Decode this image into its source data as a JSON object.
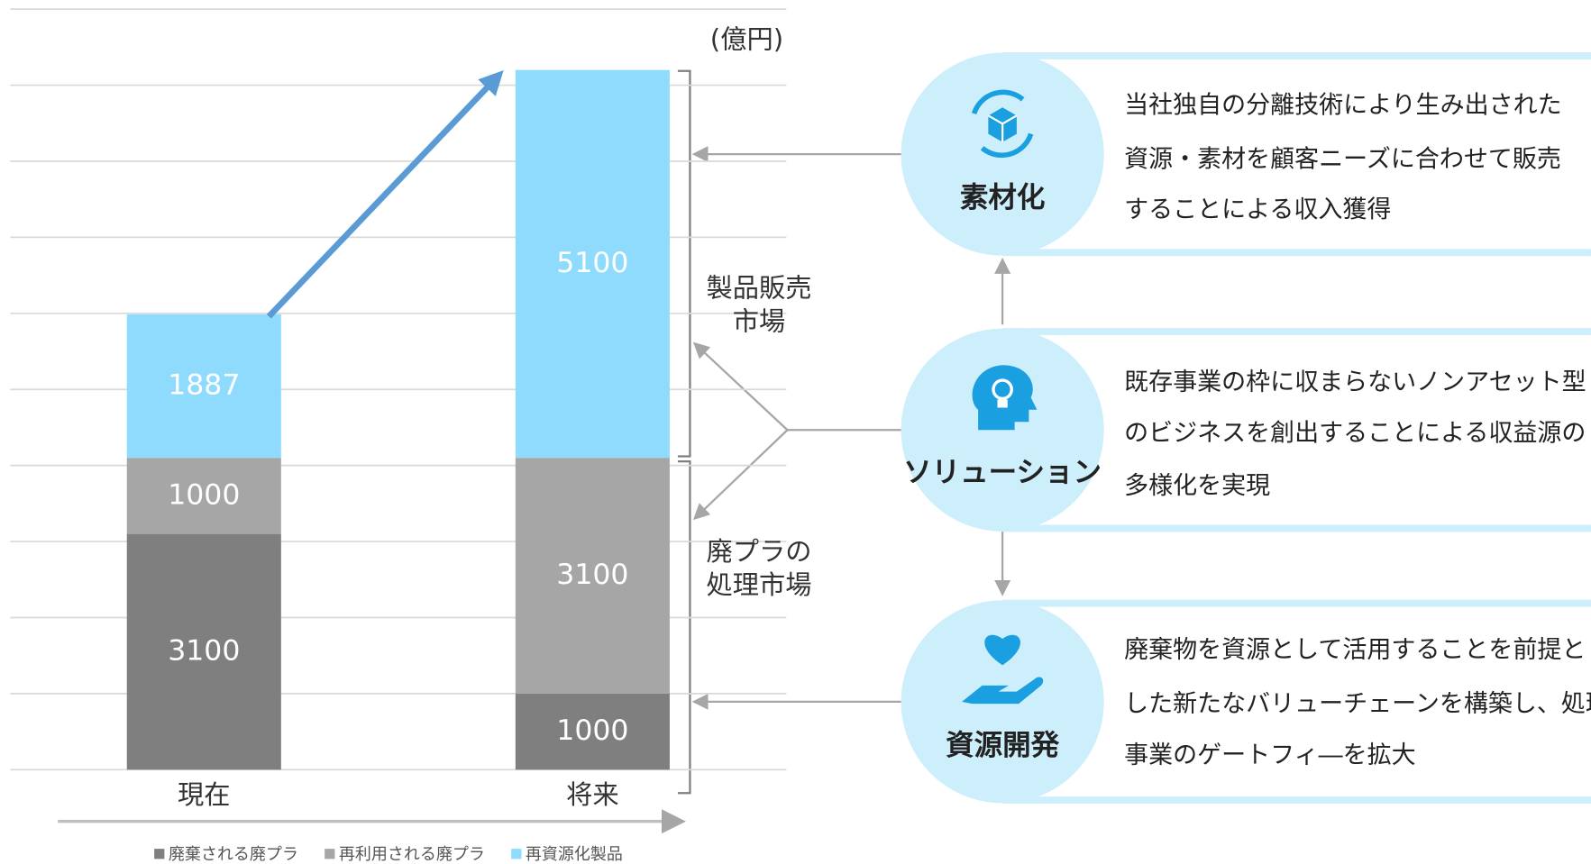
{
  "chart_data": {
    "type": "bar",
    "stacked": true,
    "unit_label": "(億円)",
    "categories": [
      "現在",
      "将来"
    ],
    "series": [
      {
        "name": "廃棄される廃プラ",
        "color": "#7f7f7f",
        "values": [
          3100,
          1000
        ]
      },
      {
        "name": "再利用される廃プラ",
        "color": "#a6a6a6",
        "values": [
          1000,
          3100
        ]
      },
      {
        "name": "再資源化製品",
        "color": "#8fdbfd",
        "values": [
          1887,
          5100
        ]
      }
    ],
    "ylim": [
      0,
      10000
    ],
    "yticks": [
      0,
      1000,
      2000,
      3000,
      4000,
      5000,
      6000,
      7000,
      8000,
      9000,
      10000
    ],
    "grid": true,
    "legend": "bottom"
  },
  "market_labels": [
    {
      "lines": [
        "製品販売",
        "市場"
      ]
    },
    {
      "lines": [
        "廃プラの",
        "処理市場"
      ]
    }
  ],
  "pillars": [
    {
      "label": "素材化",
      "lines": [
        "当社独自の分離技術により生み出された",
        "資源・素材を顧客ニーズに合わせて販売",
        "することによる収入獲得"
      ]
    },
    {
      "label": "ソリューション",
      "lines": [
        "既存事業の枠に収まらないノンアセット型",
        "のビジネスを創出することによる収益源の",
        "多様化を実現"
      ]
    },
    {
      "label": "資源開発",
      "lines": [
        "廃棄物を資源として活用することを前提と",
        "した新たなバリューチェーンを構築し、処理",
        "事業のゲートフィ―を拡大"
      ]
    }
  ]
}
